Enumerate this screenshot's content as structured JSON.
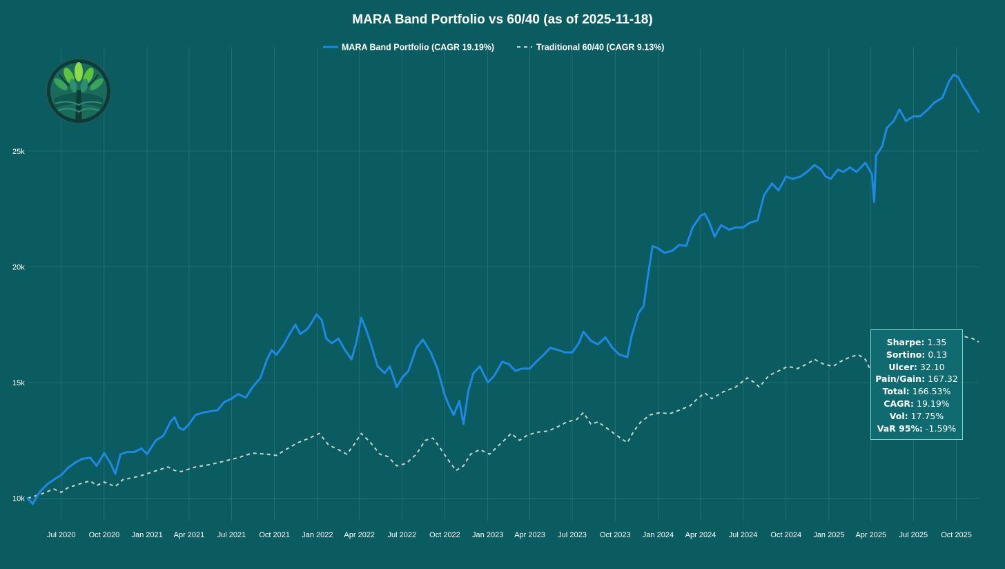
{
  "chart_data": {
    "type": "line",
    "title": "MARA Band Portfolio vs 60/40  (as of 2025-11-18)",
    "xlabel": "",
    "ylabel": "",
    "x_ticks": [
      "Jul 2020",
      "Oct 2020",
      "Jan 2021",
      "Apr 2021",
      "Jul 2021",
      "Oct 2021",
      "Jan 2022",
      "Apr 2022",
      "Jul 2022",
      "Oct 2022",
      "Jan 2023",
      "Apr 2023",
      "Jul 2023",
      "Oct 2023",
      "Jan 2024",
      "Apr 2024",
      "Jul 2024",
      "Oct 2024",
      "Jan 2025",
      "Apr 2025",
      "Jul 2025",
      "Oct 2025"
    ],
    "y_ticks": [
      "10k",
      "15k",
      "20k",
      "25k"
    ],
    "y_tick_values": [
      10000,
      15000,
      20000,
      25000
    ],
    "xlim": [
      "2020-04-20",
      "2025-11-18"
    ],
    "ylim": [
      9000,
      29500
    ],
    "grid": true,
    "legend_position": "top-center",
    "series": [
      {
        "name": "MARA Band Portfolio  (CAGR 19.19%)",
        "color": "#1e88e5",
        "style": "solid",
        "points": [
          [
            "2020-04-20",
            10000
          ],
          [
            "2020-05-01",
            9750
          ],
          [
            "2020-05-15",
            10250
          ],
          [
            "2020-06-01",
            10600
          ],
          [
            "2020-06-15",
            10800
          ],
          [
            "2020-07-01",
            11000
          ],
          [
            "2020-07-15",
            11300
          ],
          [
            "2020-08-01",
            11550
          ],
          [
            "2020-08-15",
            11700
          ],
          [
            "2020-09-01",
            11750
          ],
          [
            "2020-09-15",
            11400
          ],
          [
            "2020-10-01",
            11950
          ],
          [
            "2020-10-15",
            11500
          ],
          [
            "2020-10-25",
            11050
          ],
          [
            "2020-11-05",
            11900
          ],
          [
            "2020-11-20",
            12000
          ],
          [
            "2020-12-05",
            12000
          ],
          [
            "2020-12-20",
            12150
          ],
          [
            "2021-01-01",
            11900
          ],
          [
            "2021-01-10",
            12200
          ],
          [
            "2021-01-20",
            12500
          ],
          [
            "2021-02-05",
            12700
          ],
          [
            "2021-02-20",
            13300
          ],
          [
            "2021-03-01",
            13500
          ],
          [
            "2021-03-10",
            13050
          ],
          [
            "2021-03-20",
            12950
          ],
          [
            "2021-04-01",
            13200
          ],
          [
            "2021-04-15",
            13600
          ],
          [
            "2021-05-01",
            13700
          ],
          [
            "2021-05-15",
            13750
          ],
          [
            "2021-06-01",
            13800
          ],
          [
            "2021-06-15",
            14150
          ],
          [
            "2021-07-01",
            14300
          ],
          [
            "2021-07-15",
            14500
          ],
          [
            "2021-08-01",
            14350
          ],
          [
            "2021-08-15",
            14800
          ],
          [
            "2021-09-01",
            15200
          ],
          [
            "2021-09-15",
            16000
          ],
          [
            "2021-09-25",
            16400
          ],
          [
            "2021-10-05",
            16200
          ],
          [
            "2021-10-20",
            16600
          ],
          [
            "2021-11-01",
            17050
          ],
          [
            "2021-11-15",
            17500
          ],
          [
            "2021-11-25",
            17100
          ],
          [
            "2021-12-10",
            17300
          ],
          [
            "2021-12-20",
            17600
          ],
          [
            "2021-12-30",
            17950
          ],
          [
            "2022-01-10",
            17700
          ],
          [
            "2022-01-20",
            16900
          ],
          [
            "2022-02-01",
            16700
          ],
          [
            "2022-02-15",
            16900
          ],
          [
            "2022-03-01",
            16400
          ],
          [
            "2022-03-15",
            16000
          ],
          [
            "2022-03-25",
            16700
          ],
          [
            "2022-04-05",
            17800
          ],
          [
            "2022-04-15",
            17300
          ],
          [
            "2022-04-25",
            16700
          ],
          [
            "2022-05-10",
            15700
          ],
          [
            "2022-05-25",
            15400
          ],
          [
            "2022-06-05",
            15700
          ],
          [
            "2022-06-20",
            14800
          ],
          [
            "2022-07-01",
            15200
          ],
          [
            "2022-07-15",
            15500
          ],
          [
            "2022-08-01",
            16500
          ],
          [
            "2022-08-15",
            16850
          ],
          [
            "2022-09-01",
            16300
          ],
          [
            "2022-09-15",
            15600
          ],
          [
            "2022-09-30",
            14500
          ],
          [
            "2022-10-10",
            14000
          ],
          [
            "2022-10-20",
            13600
          ],
          [
            "2022-11-01",
            14200
          ],
          [
            "2022-11-10",
            13200
          ],
          [
            "2022-11-20",
            14600
          ],
          [
            "2022-12-01",
            15400
          ],
          [
            "2022-12-15",
            15700
          ],
          [
            "2023-01-01",
            15000
          ],
          [
            "2023-01-15",
            15300
          ],
          [
            "2023-02-01",
            15900
          ],
          [
            "2023-02-15",
            15800
          ],
          [
            "2023-03-01",
            15500
          ],
          [
            "2023-03-15",
            15600
          ],
          [
            "2023-04-01",
            15600
          ],
          [
            "2023-04-15",
            15900
          ],
          [
            "2023-05-01",
            16200
          ],
          [
            "2023-05-15",
            16500
          ],
          [
            "2023-06-01",
            16400
          ],
          [
            "2023-06-15",
            16300
          ],
          [
            "2023-07-01",
            16300
          ],
          [
            "2023-07-15",
            16700
          ],
          [
            "2023-07-25",
            17200
          ],
          [
            "2023-08-10",
            16800
          ],
          [
            "2023-08-25",
            16650
          ],
          [
            "2023-09-10",
            16950
          ],
          [
            "2023-09-25",
            16500
          ],
          [
            "2023-10-10",
            16200
          ],
          [
            "2023-10-27",
            16100
          ],
          [
            "2023-11-05",
            17000
          ],
          [
            "2023-11-20",
            18000
          ],
          [
            "2023-12-01",
            18300
          ],
          [
            "2023-12-10",
            19600
          ],
          [
            "2023-12-20",
            20900
          ],
          [
            "2024-01-01",
            20800
          ],
          [
            "2024-01-15",
            20600
          ],
          [
            "2024-02-01",
            20700
          ],
          [
            "2024-02-15",
            20950
          ],
          [
            "2024-03-01",
            20900
          ],
          [
            "2024-03-15",
            21700
          ],
          [
            "2024-04-01",
            22200
          ],
          [
            "2024-04-10",
            22300
          ],
          [
            "2024-04-20",
            21900
          ],
          [
            "2024-05-01",
            21300
          ],
          [
            "2024-05-15",
            21800
          ],
          [
            "2024-06-01",
            21600
          ],
          [
            "2024-06-15",
            21700
          ],
          [
            "2024-07-01",
            21700
          ],
          [
            "2024-07-15",
            21900
          ],
          [
            "2024-08-01",
            22000
          ],
          [
            "2024-08-15",
            23100
          ],
          [
            "2024-09-01",
            23600
          ],
          [
            "2024-09-15",
            23300
          ],
          [
            "2024-10-01",
            23900
          ],
          [
            "2024-10-15",
            23800
          ],
          [
            "2024-11-01",
            23900
          ],
          [
            "2024-11-15",
            24100
          ],
          [
            "2024-12-01",
            24400
          ],
          [
            "2024-12-15",
            24200
          ],
          [
            "2024-12-25",
            23900
          ],
          [
            "2025-01-05",
            23800
          ],
          [
            "2025-01-20",
            24200
          ],
          [
            "2025-02-01",
            24100
          ],
          [
            "2025-02-15",
            24300
          ],
          [
            "2025-03-01",
            24100
          ],
          [
            "2025-03-20",
            24500
          ],
          [
            "2025-04-03",
            24000
          ],
          [
            "2025-04-08",
            22800
          ],
          [
            "2025-04-12",
            24800
          ],
          [
            "2025-04-25",
            25200
          ],
          [
            "2025-05-05",
            26000
          ],
          [
            "2025-05-20",
            26300
          ],
          [
            "2025-06-01",
            26800
          ],
          [
            "2025-06-15",
            26300
          ],
          [
            "2025-07-01",
            26500
          ],
          [
            "2025-07-15",
            26500
          ],
          [
            "2025-08-01",
            26800
          ],
          [
            "2025-08-15",
            27100
          ],
          [
            "2025-09-01",
            27300
          ],
          [
            "2025-09-15",
            28000
          ],
          [
            "2025-09-25",
            28300
          ],
          [
            "2025-10-05",
            28200
          ],
          [
            "2025-10-15",
            27800
          ],
          [
            "2025-10-25",
            27500
          ],
          [
            "2025-11-05",
            27100
          ],
          [
            "2025-11-18",
            26700
          ]
        ]
      },
      {
        "name": "Traditional 60/40  (CAGR 9.13%)",
        "color": "#c8d6d6",
        "style": "dashed",
        "points": [
          [
            "2020-04-20",
            10000
          ],
          [
            "2020-05-15",
            10150
          ],
          [
            "2020-06-15",
            10400
          ],
          [
            "2020-07-01",
            10250
          ],
          [
            "2020-07-15",
            10450
          ],
          [
            "2020-08-15",
            10650
          ],
          [
            "2020-09-01",
            10750
          ],
          [
            "2020-09-15",
            10550
          ],
          [
            "2020-10-01",
            10700
          ],
          [
            "2020-10-25",
            10500
          ],
          [
            "2020-11-10",
            10800
          ],
          [
            "2020-12-15",
            10950
          ],
          [
            "2021-01-15",
            11150
          ],
          [
            "2021-02-15",
            11350
          ],
          [
            "2021-03-01",
            11200
          ],
          [
            "2021-03-15",
            11150
          ],
          [
            "2021-04-15",
            11350
          ],
          [
            "2021-05-15",
            11450
          ],
          [
            "2021-06-15",
            11600
          ],
          [
            "2021-07-15",
            11750
          ],
          [
            "2021-08-15",
            11950
          ],
          [
            "2021-09-15",
            11900
          ],
          [
            "2021-10-05",
            11850
          ],
          [
            "2021-10-25",
            12100
          ],
          [
            "2021-11-20",
            12400
          ],
          [
            "2021-12-15",
            12600
          ],
          [
            "2022-01-05",
            12800
          ],
          [
            "2022-01-25",
            12300
          ],
          [
            "2022-02-15",
            12100
          ],
          [
            "2022-03-05",
            11900
          ],
          [
            "2022-03-20",
            12300
          ],
          [
            "2022-04-05",
            12800
          ],
          [
            "2022-04-25",
            12400
          ],
          [
            "2022-05-15",
            11900
          ],
          [
            "2022-06-01",
            11800
          ],
          [
            "2022-06-20",
            11400
          ],
          [
            "2022-07-10",
            11500
          ],
          [
            "2022-08-01",
            11900
          ],
          [
            "2022-08-20",
            12500
          ],
          [
            "2022-09-05",
            12600
          ],
          [
            "2022-09-20",
            12200
          ],
          [
            "2022-10-10",
            11600
          ],
          [
            "2022-10-25",
            11200
          ],
          [
            "2022-11-10",
            11400
          ],
          [
            "2022-11-25",
            11900
          ],
          [
            "2022-12-15",
            12100
          ],
          [
            "2023-01-05",
            11900
          ],
          [
            "2023-01-20",
            12200
          ],
          [
            "2023-02-05",
            12500
          ],
          [
            "2023-02-20",
            12800
          ],
          [
            "2023-03-10",
            12500
          ],
          [
            "2023-03-25",
            12700
          ],
          [
            "2023-04-15",
            12850
          ],
          [
            "2023-05-10",
            12900
          ],
          [
            "2023-06-01",
            13100
          ],
          [
            "2023-06-20",
            13300
          ],
          [
            "2023-07-10",
            13400
          ],
          [
            "2023-07-25",
            13700
          ],
          [
            "2023-08-10",
            13200
          ],
          [
            "2023-08-25",
            13300
          ],
          [
            "2023-09-15",
            13000
          ],
          [
            "2023-10-05",
            12700
          ],
          [
            "2023-10-27",
            12400
          ],
          [
            "2023-11-10",
            12900
          ],
          [
            "2023-11-25",
            13300
          ],
          [
            "2023-12-15",
            13600
          ],
          [
            "2024-01-05",
            13700
          ],
          [
            "2024-01-25",
            13650
          ],
          [
            "2024-02-15",
            13800
          ],
          [
            "2024-03-10",
            14000
          ],
          [
            "2024-03-25",
            14300
          ],
          [
            "2024-04-10",
            14550
          ],
          [
            "2024-04-25",
            14300
          ],
          [
            "2024-05-20",
            14600
          ],
          [
            "2024-06-15",
            14800
          ],
          [
            "2024-07-10",
            15200
          ],
          [
            "2024-07-25",
            15000
          ],
          [
            "2024-08-05",
            14800
          ],
          [
            "2024-08-25",
            15300
          ],
          [
            "2024-09-15",
            15500
          ],
          [
            "2024-10-05",
            15700
          ],
          [
            "2024-10-25",
            15600
          ],
          [
            "2024-11-15",
            15800
          ],
          [
            "2024-12-01",
            16000
          ],
          [
            "2024-12-20",
            15800
          ],
          [
            "2025-01-10",
            15700
          ],
          [
            "2025-01-25",
            15900
          ],
          [
            "2025-02-15",
            16100
          ],
          [
            "2025-03-05",
            16200
          ],
          [
            "2025-03-20",
            16000
          ],
          [
            "2025-04-08",
            15200
          ],
          [
            "2025-04-25",
            15700
          ],
          [
            "2025-05-15",
            16000
          ],
          [
            "2025-06-15",
            16300
          ],
          [
            "2025-07-15",
            16500
          ],
          [
            "2025-08-15",
            16650
          ],
          [
            "2025-09-15",
            16800
          ],
          [
            "2025-10-15",
            17000
          ],
          [
            "2025-11-05",
            16900
          ],
          [
            "2025-11-18",
            16750
          ]
        ]
      }
    ]
  },
  "stats": [
    {
      "label": "Sharpe:",
      "value": "1.35"
    },
    {
      "label": "Sortino:",
      "value": "0.13"
    },
    {
      "label": "Ulcer:",
      "value": "32.10"
    },
    {
      "label": "Pain/Gain:",
      "value": "167.32"
    },
    {
      "label": "Total:",
      "value": "166.53%"
    },
    {
      "label": "CAGR:",
      "value": "19.19%"
    },
    {
      "label": "Vol:",
      "value": "17.75%"
    },
    {
      "label": "VaR 95%:",
      "value": "-1.59%"
    }
  ],
  "colors": {
    "background": "#0b5c60",
    "grid": "#3d8a8d",
    "mara": "#1e88e5",
    "traditional": "#c8d6d6"
  },
  "logo": {
    "icon": "tree-logo-icon"
  }
}
